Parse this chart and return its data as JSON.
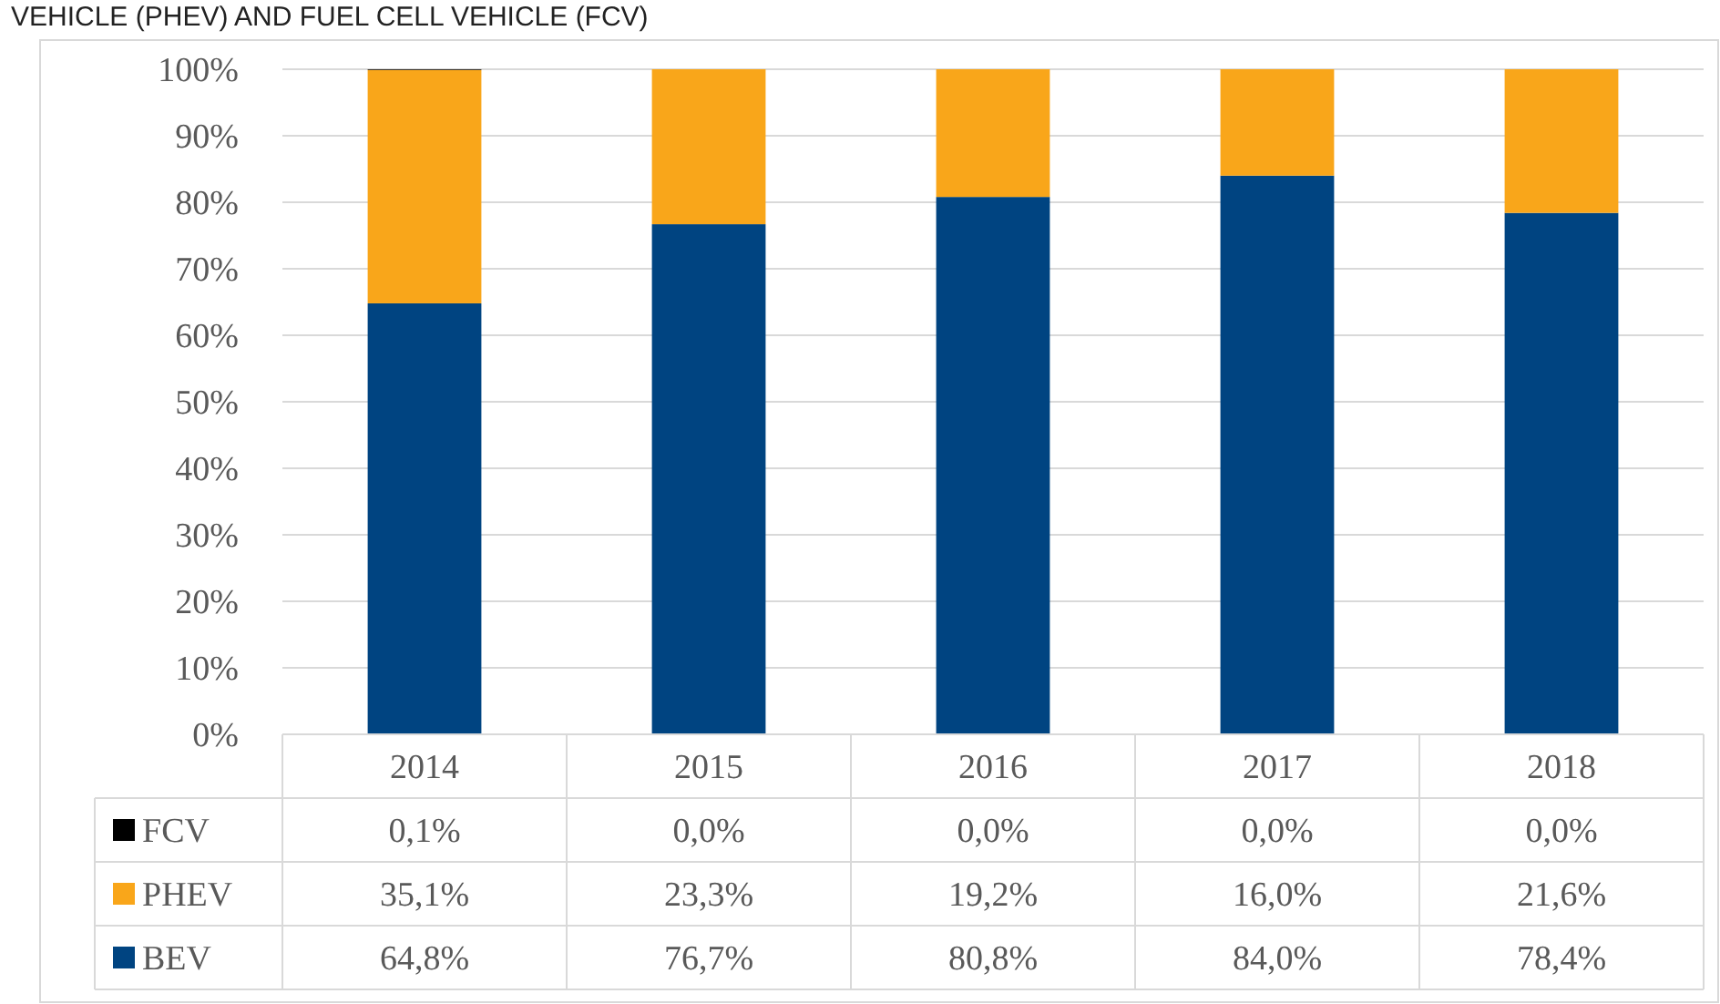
{
  "chart_data": {
    "type": "bar",
    "title": "VEHICLE (PHEV) AND FUEL CELL VEHICLE (FCV)",
    "stacked": true,
    "grid": "y",
    "legend": "bottom",
    "data_labels": true,
    "categories": [
      "2014",
      "2015",
      "2016",
      "2017",
      "2018"
    ],
    "ylim": [
      0,
      100
    ],
    "yticks": [
      {
        "value": 0,
        "label": "0%"
      },
      {
        "value": 10,
        "label": "10%"
      },
      {
        "value": 20,
        "label": "20%"
      },
      {
        "value": 30,
        "label": "30%"
      },
      {
        "value": 40,
        "label": "40%"
      },
      {
        "value": 50,
        "label": "50%"
      },
      {
        "value": 60,
        "label": "60%"
      },
      {
        "value": 70,
        "label": "70%"
      },
      {
        "value": 80,
        "label": "80%"
      },
      {
        "value": 90,
        "label": "90%"
      },
      {
        "value": 100,
        "label": "100%"
      }
    ],
    "series": [
      {
        "name": "BEV",
        "color": "#004481",
        "values": [
          64.8,
          76.7,
          80.8,
          84.0,
          78.4
        ],
        "value_labels": [
          "64,8%",
          "76,7%",
          "80,8%",
          "84,0%",
          "78,4%"
        ]
      },
      {
        "name": "PHEV",
        "color": "#f9a61a",
        "values": [
          35.1,
          23.3,
          19.2,
          16.0,
          21.6
        ],
        "value_labels": [
          "35,1%",
          "23,3%",
          "19,2%",
          "16,0%",
          "21,6%"
        ]
      },
      {
        "name": "FCV",
        "color": "#000000",
        "values": [
          0.1,
          0.0,
          0.0,
          0.0,
          0.0
        ],
        "value_labels": [
          "0,1%",
          "0,0%",
          "0,0%",
          "0,0%",
          "0,0%"
        ]
      }
    ]
  }
}
